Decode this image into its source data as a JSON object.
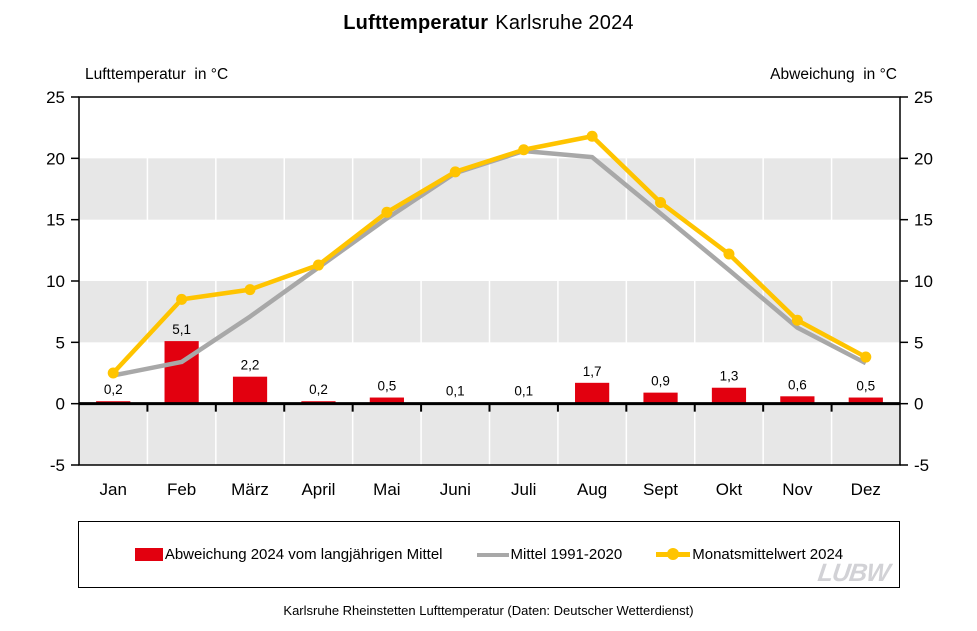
{
  "title": {
    "main": "Lufttemperatur",
    "suffix": "Karlsruhe 2024"
  },
  "axis_headers": {
    "left": "Lufttemperatur  in °C",
    "right": "Abweichung  in °C"
  },
  "caption": "Karlsruhe Rheinstetten Lufttemperatur (Daten: Deutscher Wetterdienst)",
  "logo": "LUBW",
  "legend": {
    "items": [
      {
        "label": "Abweichung 2024 vom langjährigen Mittel",
        "type": "bar",
        "color": "#e2000f"
      },
      {
        "label": "Mittel 1991-2020",
        "type": "line",
        "color": "#a8a8a8"
      },
      {
        "label": "Monatsmittelwert 2024",
        "type": "line-marker",
        "color": "#ffc400"
      }
    ]
  },
  "chart_data": {
    "type": "bar",
    "subtype": "bar+line combo, dual axis (same scale both sides)",
    "title": "Lufttemperatur Karlsruhe 2024",
    "categories": [
      "Jan",
      "Feb",
      "März",
      "April",
      "Mai",
      "Juni",
      "Juli",
      "Aug",
      "Sept",
      "Okt",
      "Nov",
      "Dez"
    ],
    "series": [
      {
        "name": "Abweichung 2024 vom langjährigen Mittel",
        "type": "bar",
        "color": "#e2000f",
        "axis": "right",
        "values": [
          0.2,
          5.1,
          2.2,
          0.2,
          0.5,
          0.1,
          0.1,
          1.7,
          0.9,
          1.3,
          0.6,
          0.5
        ],
        "labels": [
          "0,2",
          "5,1",
          "2,2",
          "0,2",
          "0,5",
          "0,1",
          "0,1",
          "1,7",
          "0,9",
          "1,3",
          "0,6",
          "0,5"
        ]
      },
      {
        "name": "Mittel 1991-2020",
        "type": "line",
        "color": "#a8a8a8",
        "axis": "left",
        "values": [
          2.3,
          3.4,
          7.1,
          11.1,
          15.1,
          18.8,
          20.6,
          20.1,
          15.5,
          10.9,
          6.2,
          3.3
        ]
      },
      {
        "name": "Monatsmittelwert 2024",
        "type": "line",
        "marker": "circle",
        "color": "#ffc400",
        "axis": "left",
        "values": [
          2.5,
          8.5,
          9.3,
          11.3,
          15.6,
          18.9,
          20.7,
          21.8,
          16.4,
          12.2,
          6.8,
          3.8
        ]
      }
    ],
    "ylabel_left": "Lufttemperatur in °C",
    "ylabel_right": "Abweichung in °C",
    "ylim": [
      -5,
      25
    ],
    "yticks": [
      -5,
      0,
      5,
      10,
      15,
      20,
      25
    ],
    "shaded_bands": [
      [
        15,
        20
      ],
      [
        5,
        10
      ],
      [
        -5,
        0
      ]
    ],
    "band_color": "#e7e7e7",
    "grid": "white vertical category separators over shaded bands",
    "legend_position": "bottom"
  }
}
